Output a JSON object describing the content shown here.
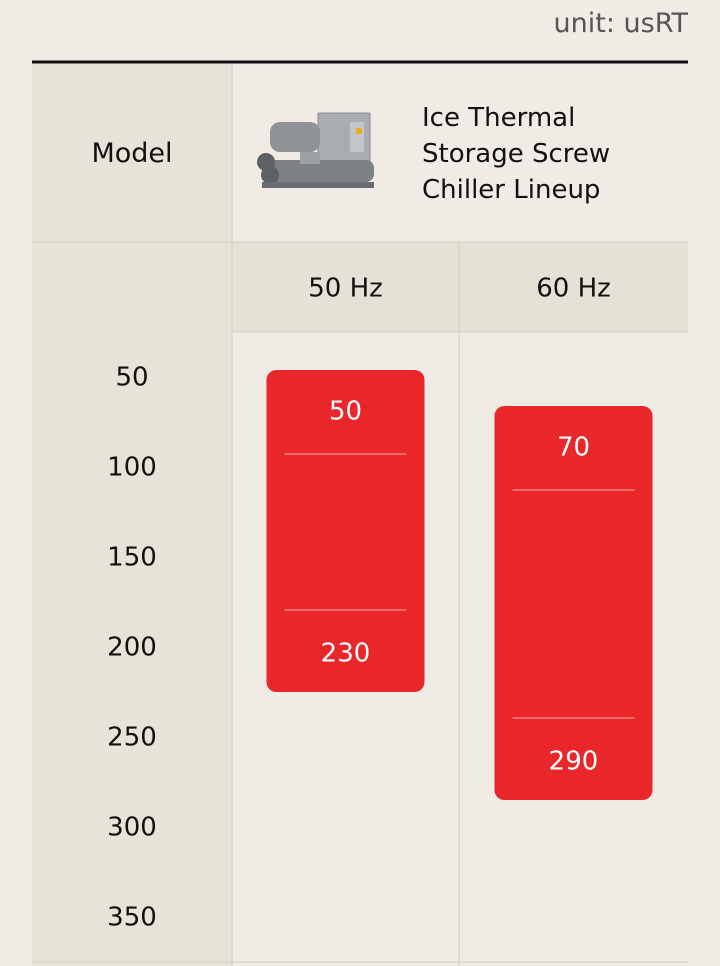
{
  "unit_label": "unit: usRT",
  "header": {
    "row_label": "Model",
    "title": "Ice Thermal Storage Screw Chiller Lineup"
  },
  "chart_data": {
    "type": "range-bar",
    "categories": [
      "50 Hz",
      "60 Hz"
    ],
    "low": [
      50,
      70
    ],
    "high": [
      230,
      290
    ],
    "color": "#e92629",
    "ylim": [
      50,
      350
    ],
    "yticks": [
      50,
      100,
      150,
      200,
      250,
      300,
      350
    ]
  }
}
